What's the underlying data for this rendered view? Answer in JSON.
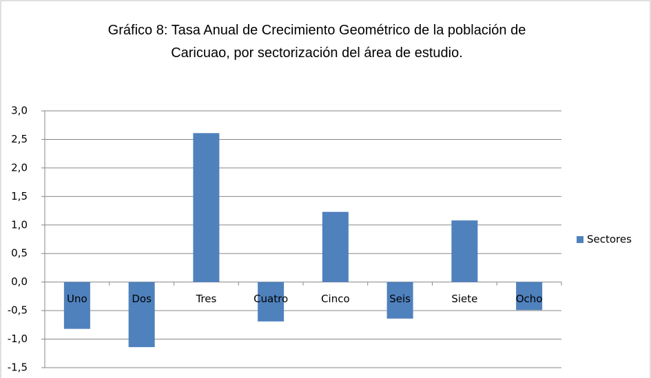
{
  "chart_data": {
    "type": "bar",
    "title": "Gráfico 8: Tasa Anual de Crecimiento Geométrico de la población de Caricuao, por sectorización del área de estudio.",
    "categories": [
      "Uno",
      "Dos",
      "Tres",
      "Cuatro",
      "Cinco",
      "Seis",
      "Siete",
      "Ocho"
    ],
    "series": [
      {
        "name": "Sectores",
        "color": "#4f81bd",
        "values": [
          -0.82,
          -1.14,
          2.61,
          -0.69,
          1.23,
          -0.64,
          1.08,
          -0.49
        ]
      }
    ],
    "ylim": [
      -1.5,
      3.0
    ],
    "yticks": [
      {
        "value": -1.5,
        "label": "-1,5"
      },
      {
        "value": -1.0,
        "label": "-1,0"
      },
      {
        "value": -0.5,
        "label": "-0,5"
      },
      {
        "value": 0,
        "label": "0,0"
      },
      {
        "value": 0.5,
        "label": "0,5"
      },
      {
        "value": 1.0,
        "label": "1,0"
      },
      {
        "value": 1.5,
        "label": "1,5"
      },
      {
        "value": 2.0,
        "label": "2,0"
      },
      {
        "value": 2.5,
        "label": "2,5"
      },
      {
        "value": 3.0,
        "label": "3,0"
      }
    ],
    "grid": true,
    "legend": "right"
  }
}
